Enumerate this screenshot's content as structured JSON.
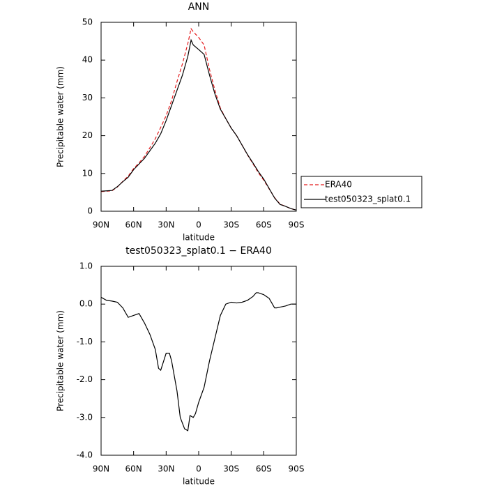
{
  "chart_data": [
    {
      "type": "line",
      "title": "ANN",
      "x_label": "latitude",
      "y_label": "Precipitable water (mm)",
      "x": [
        90,
        85,
        80,
        75,
        70,
        65,
        60,
        55,
        50,
        45,
        40,
        35,
        30,
        25,
        20,
        15,
        10,
        7,
        5,
        0,
        -5,
        -10,
        -15,
        -20,
        -25,
        -30,
        -35,
        -40,
        -45,
        -50,
        -55,
        -60,
        -65,
        -70,
        -75,
        -80,
        -85,
        -90
      ],
      "series": [
        {
          "name": "ERA40",
          "color": "#e41a1c",
          "dash": true,
          "values": [
            5.2,
            5.3,
            5.4,
            6.4,
            7.9,
            9.3,
            11.3,
            12.8,
            14.5,
            16.8,
            19.2,
            22.2,
            25.3,
            29.3,
            34.3,
            39,
            44.4,
            48.3,
            47.5,
            46,
            44,
            37.5,
            32,
            27.3,
            24.5,
            22,
            20,
            17.5,
            14.9,
            12.6,
            10.2,
            8.2,
            5.9,
            3.6,
            1.9,
            1.3,
            0.7,
            0.3
          ]
        },
        {
          "name": "test050323_splat0.1",
          "color": "#000000",
          "dash": false,
          "values": [
            5.3,
            5.4,
            5.5,
            6.5,
            7.8,
            9,
            11,
            12.5,
            14,
            16,
            18,
            20.5,
            24,
            28,
            32,
            36,
            41,
            45.3,
            44,
            42.8,
            41.5,
            36,
            31,
            27,
            24.5,
            22,
            20,
            17.5,
            15,
            12.8,
            10.5,
            8.5,
            6,
            3.5,
            1.8,
            1.3,
            0.7,
            0.3
          ]
        }
      ],
      "xlim": [
        90,
        -90
      ],
      "xticks": [
        {
          "value": 90,
          "label": "90N"
        },
        {
          "value": 60,
          "label": "60N"
        },
        {
          "value": 30,
          "label": "30N"
        },
        0,
        {
          "value": -30,
          "label": "30S"
        },
        {
          "value": -60,
          "label": "60S"
        },
        {
          "value": -90,
          "label": "90S"
        }
      ],
      "ylim": [
        0,
        50
      ],
      "yticks": [
        0,
        10,
        20,
        30,
        40,
        50
      ],
      "legend": "right"
    },
    {
      "type": "line",
      "title": "test050323_splat0.1 − ERA40",
      "x_label": "latitude",
      "y_label": "Precipitable water (mm)",
      "x": [
        90,
        85,
        80,
        75,
        70,
        65,
        60,
        55,
        50,
        45,
        40,
        37,
        35,
        30,
        27,
        25,
        20,
        17,
        13,
        10,
        8,
        5,
        3,
        0,
        -5,
        -10,
        -15,
        -20,
        -25,
        -30,
        -35,
        -40,
        -45,
        -50,
        -53,
        -55,
        -60,
        -65,
        -70,
        -72,
        -75,
        -80,
        -85,
        -90
      ],
      "series": [
        {
          "color": "#000000",
          "dash": false,
          "values": [
            0.18,
            0.1,
            0.08,
            0.05,
            -0.1,
            -0.35,
            -0.3,
            -0.25,
            -0.5,
            -0.8,
            -1.2,
            -1.7,
            -1.75,
            -1.3,
            -1.3,
            -1.5,
            -2.3,
            -3,
            -3.3,
            -3.35,
            -2.95,
            -3,
            -2.9,
            -2.6,
            -2.2,
            -1.5,
            -0.9,
            -0.3,
            0,
            0.05,
            0.03,
            0.05,
            0.1,
            0.2,
            0.3,
            0.3,
            0.25,
            0.15,
            -0.1,
            -0.1,
            -0.08,
            -0.05,
            0,
            0
          ]
        }
      ],
      "xlim": [
        90,
        -90
      ],
      "xticks": [
        {
          "value": 90,
          "label": "90N"
        },
        {
          "value": 60,
          "label": "60N"
        },
        {
          "value": 30,
          "label": "30N"
        },
        0,
        {
          "value": -30,
          "label": "30S"
        },
        {
          "value": -60,
          "label": "60S"
        },
        {
          "value": -90,
          "label": "90S"
        }
      ],
      "ylim": [
        -4,
        1
      ],
      "yticks": [
        {
          "value": -4,
          "label": "-4.0"
        },
        {
          "value": -3,
          "label": "-3.0"
        },
        {
          "value": -2,
          "label": "-2.0"
        },
        {
          "value": -1,
          "label": "-1.0"
        },
        {
          "value": 0,
          "label": "0.0"
        },
        {
          "value": 1,
          "label": "1.0"
        }
      ]
    }
  ]
}
